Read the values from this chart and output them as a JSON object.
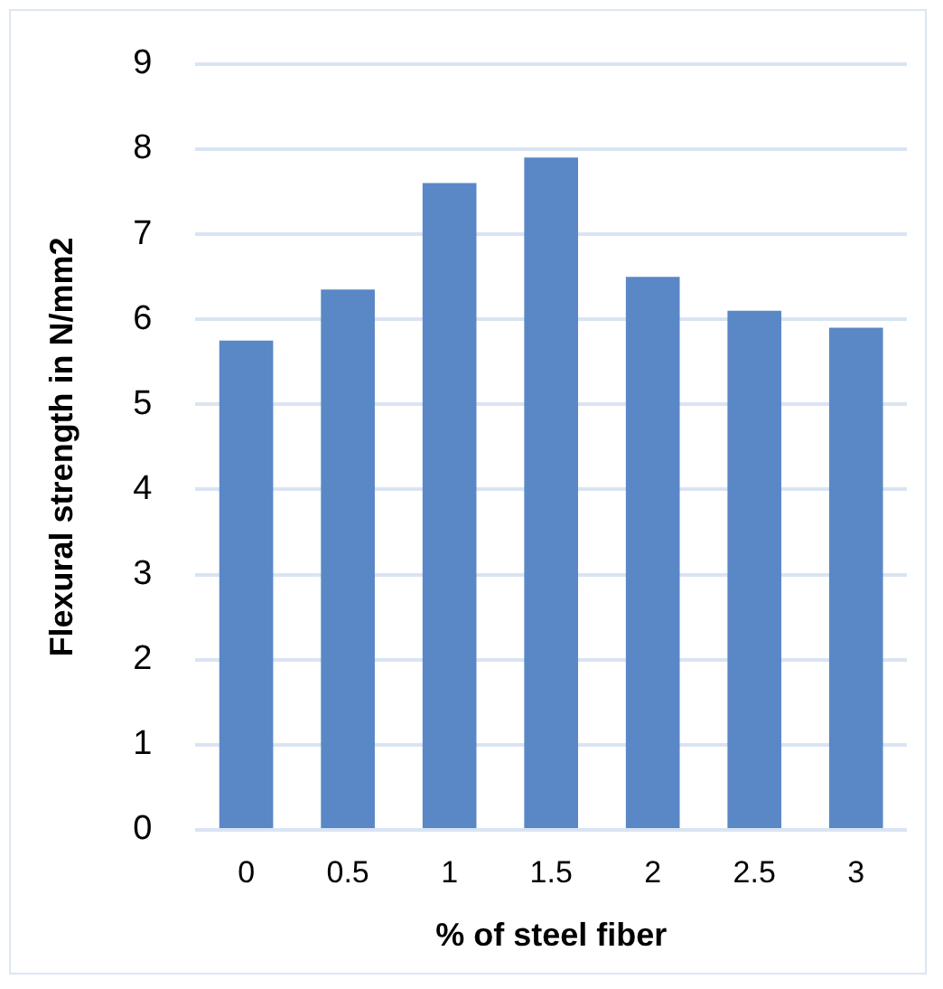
{
  "chart_data": {
    "type": "bar",
    "xlabel": "% of steel fiber",
    "ylabel": "Flexural strength in N/mm2",
    "categories": [
      "0",
      "0.5",
      "1",
      "1.5",
      "2",
      "2.5",
      "3"
    ],
    "values": [
      5.75,
      6.35,
      7.6,
      7.9,
      6.5,
      6.1,
      5.9
    ],
    "color": "#5a88c6",
    "ylim": [
      0,
      9
    ],
    "yticks": [
      0,
      1,
      2,
      3,
      4,
      5,
      6,
      7,
      8,
      9
    ],
    "grid": "y",
    "legend": false
  }
}
